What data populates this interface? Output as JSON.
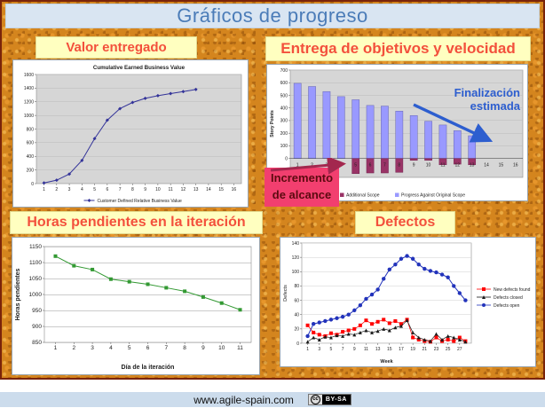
{
  "title": "Gráficos de progreso",
  "panels": {
    "valor": {
      "header": "Valor entregado"
    },
    "objetivos": {
      "header": "Entrega de objetivos y velocidad",
      "annotation": "Finalización estimada",
      "scope_note": "Incremento de alcance"
    },
    "horas": {
      "header": "Horas pendientes en la iteración"
    },
    "defectos": {
      "header": "Defectos"
    }
  },
  "footer": {
    "url": "www.agile-spain.com",
    "cc": "cc",
    "license": "BY-SA"
  },
  "colors": {
    "slide_bg": "#d4851e",
    "title_bg": "#d9e5f2",
    "title_text": "#4b7cb8",
    "header_bg": "#ffffc0",
    "header_text": "#f3503c",
    "annotation_blue": "#2d5ecf",
    "scope_pink_bg": "#f23f6f",
    "scope_text": "#5c0a10",
    "footer_bg": "#ccdcec"
  },
  "chart_data": [
    {
      "id": "ebv",
      "type": "line",
      "title": "Cumulative Earned Business Value",
      "x": [
        1,
        2,
        3,
        4,
        5,
        6,
        7,
        8,
        9,
        10,
        11,
        12,
        13
      ],
      "values": [
        10,
        50,
        140,
        340,
        660,
        930,
        1100,
        1190,
        1250,
        1290,
        1320,
        1350,
        1380
      ],
      "xticks": [
        1,
        2,
        3,
        4,
        5,
        6,
        7,
        8,
        9,
        10,
        11,
        12,
        13,
        14,
        15,
        16
      ],
      "xlim": [
        0.4,
        16.6
      ],
      "ylim": [
        0,
        1600
      ],
      "yticks": [
        0,
        200,
        400,
        600,
        800,
        1000,
        1200,
        1400,
        1600
      ],
      "legend": [
        "Customer Defined Relative Business Value"
      ],
      "color": "#333399",
      "marker": "diamond",
      "plot_bg": "#d6d6d6",
      "grid_color": "#b9b9b9",
      "grid": true
    },
    {
      "id": "scope",
      "type": "bar",
      "categories": [
        1,
        2,
        3,
        4,
        5,
        6,
        7,
        8,
        9,
        10,
        11,
        12,
        13,
        14,
        15,
        16
      ],
      "series": [
        {
          "name": "Additional Scope",
          "color": "#993366",
          "values": [
            0,
            0,
            0,
            0,
            -120,
            -115,
            -115,
            -110,
            -15,
            -15,
            -50,
            -45,
            -50,
            0,
            0,
            0
          ]
        },
        {
          "name": "Progress Against Original Scope",
          "color": "#9999ff",
          "values": [
            595,
            570,
            530,
            490,
            465,
            420,
            415,
            375,
            340,
            295,
            265,
            220,
            180,
            0,
            0,
            0
          ]
        }
      ],
      "ylim": [
        -150,
        700
      ],
      "yticks": [
        0,
        100,
        200,
        300,
        400,
        500,
        600,
        700
      ],
      "ylabel": "Story Points",
      "legend_position": "bottom",
      "plot_bg": "#d6d6d6",
      "grid_color": "#b9b9b9",
      "grid": true
    },
    {
      "id": "burndown",
      "type": "line",
      "x": [
        1,
        2,
        3,
        4,
        5,
        6,
        7,
        8,
        9,
        10,
        11
      ],
      "values": [
        1120,
        1090,
        1078,
        1048,
        1040,
        1032,
        1021,
        1010,
        992,
        973,
        952
      ],
      "xticks": [
        1,
        2,
        3,
        4,
        5,
        6,
        7,
        8,
        9,
        10,
        11
      ],
      "xlim": [
        0.4,
        11.6
      ],
      "ylim": [
        850,
        1150
      ],
      "yticks": [
        850,
        900,
        950,
        1000,
        1050,
        1100,
        1150
      ],
      "ylabel": "Horas pendientes",
      "xlabel": "Día de la iteración",
      "color": "#339933",
      "marker": "square",
      "plot_bg": "#ffffff",
      "grid_color": "#999999",
      "grid": true
    },
    {
      "id": "defects",
      "type": "scatter-line",
      "x": [
        1,
        2,
        3,
        4,
        5,
        6,
        7,
        8,
        9,
        10,
        11,
        12,
        13,
        14,
        15,
        16,
        17,
        18,
        19,
        20,
        21,
        22,
        23,
        24,
        25,
        26,
        27,
        28
      ],
      "series": [
        {
          "name": "New defects found",
          "color": "#ff0000",
          "marker": "square",
          "values": [
            25,
            15,
            12,
            10,
            14,
            12,
            16,
            18,
            20,
            25,
            32,
            27,
            30,
            33,
            28,
            31,
            27,
            33,
            8,
            5,
            3,
            2,
            8,
            3,
            5,
            3,
            8,
            3
          ]
        },
        {
          "name": "Defects closed",
          "color": "#1a1a1a",
          "marker": "triangle",
          "values": [
            2,
            8,
            5,
            9,
            8,
            11,
            10,
            13,
            12,
            15,
            18,
            15,
            17,
            20,
            18,
            22,
            24,
            32,
            15,
            8,
            5,
            3,
            13,
            5,
            10,
            8,
            5,
            2
          ]
        },
        {
          "name": "Defects open",
          "color": "#2233bb",
          "marker": "circle",
          "values": [
            10,
            27,
            29,
            31,
            33,
            35,
            37,
            40,
            46,
            53,
            62,
            68,
            75,
            90,
            103,
            110,
            118,
            122,
            118,
            110,
            104,
            101,
            99,
            96,
            92,
            80,
            70,
            60
          ]
        }
      ],
      "xtick_labels": [
        1,
        3,
        5,
        7,
        9,
        11,
        13,
        15,
        17,
        19,
        21,
        23,
        25,
        27
      ],
      "ylim": [
        0,
        140
      ],
      "yticks": [
        0,
        20,
        40,
        60,
        80,
        100,
        120,
        140
      ],
      "ylabel": "Defects",
      "xlabel": "Week",
      "legend_position": "right",
      "plot_bg": "#ffffff",
      "grid_color": "#cfcfcf",
      "grid": true
    }
  ]
}
